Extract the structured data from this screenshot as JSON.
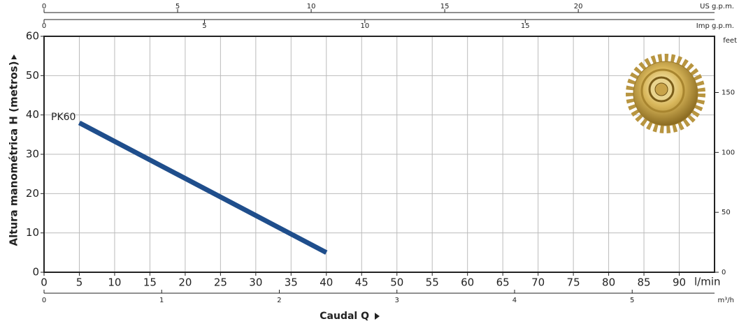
{
  "chart_data": {
    "type": "line",
    "xlabel": "Caudal Q",
    "ylabel": "Altura manométrica H (metros)",
    "xunit": "l/min",
    "xlim": [
      0,
      95
    ],
    "xticks": [
      0,
      5,
      10,
      15,
      20,
      25,
      30,
      35,
      40,
      45,
      50,
      55,
      60,
      65,
      70,
      75,
      80,
      85,
      90
    ],
    "ylim": [
      0,
      60
    ],
    "yticks": [
      0,
      10,
      20,
      30,
      40,
      50,
      60
    ],
    "grid": true,
    "x2axes": [
      {
        "label": "US g.p.m.",
        "xlim": [
          0,
          25.1
        ],
        "xticks": [
          0,
          5,
          10,
          15,
          20
        ]
      },
      {
        "label": "Imp g.p.m.",
        "xlim": [
          0,
          20.9
        ],
        "xticks": [
          0,
          5,
          10,
          15
        ]
      },
      {
        "label": "m³/h",
        "xlim": [
          0,
          5.7
        ],
        "xticks": [
          0,
          1,
          2,
          3,
          4,
          5
        ]
      }
    ],
    "y2axis": {
      "label": "feet",
      "ylim": [
        0,
        196.9
      ],
      "yticks": [
        0,
        50,
        100,
        150
      ]
    },
    "series": [
      {
        "name": "PK60",
        "color": "#1f4e8c",
        "x": [
          5,
          40
        ],
        "values": [
          38,
          5
        ]
      }
    ]
  }
}
